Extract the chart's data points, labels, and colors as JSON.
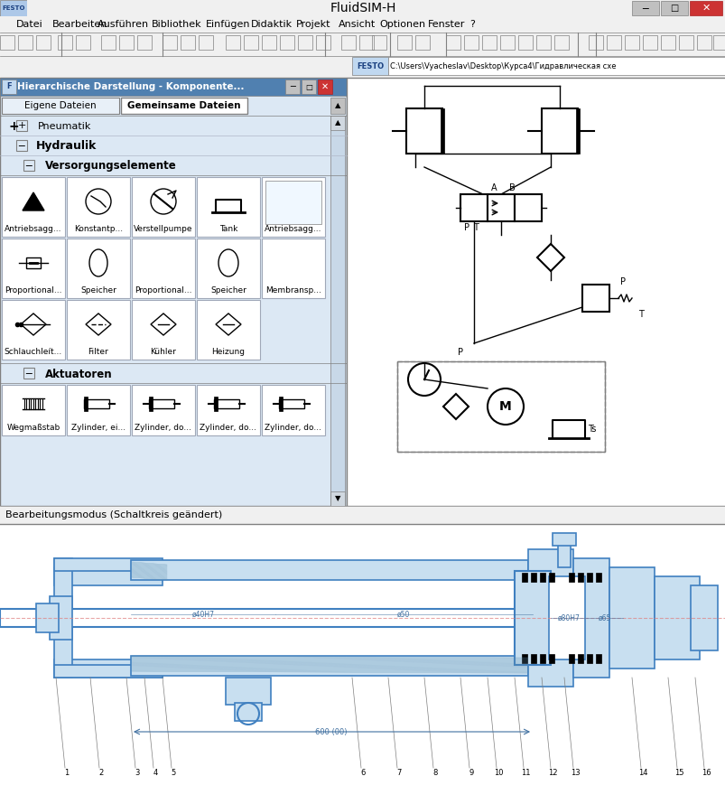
{
  "title": "FluidSIM-H",
  "bg_color": "#f0f0f0",
  "titlebar_bg": "#d4d0c8",
  "white": "#ffffff",
  "black": "#000000",
  "blue_light": "#adc8e8",
  "blue_draw": "#4080c0",
  "red_close": "#cc0000",
  "gray_mid": "#c0c0c0",
  "gray_dark": "#808080",
  "panel_bg": "#dce8f4",
  "header_bg": "#b8cfe8",
  "status_text": "Bearbeitungsmodus (Schaltkreis geändert)",
  "menu_items": [
    "Datei",
    "Bearbeiten",
    "Ausführen",
    "Bibliothek",
    "Einfügen",
    "Didaktik",
    "Projekt",
    "Ansicht",
    "Optionen",
    "Fenster",
    "?"
  ],
  "tab1": "Eigene Dateien",
  "tab2": "Gemeinsame Dateien",
  "pneumatik": "Pneumatik",
  "hydraulik": "Hydraulik",
  "versorgung": "Versorgungselemente",
  "aktuatoren": "Aktuatoren",
  "components_row1": [
    "Antriebsagg...",
    "Konstantp...",
    "Verstellpumpe",
    "Tank",
    "Antriebsagg..."
  ],
  "components_row2": [
    "Proportional...",
    "Speicher",
    "Proportional...",
    "Speicher",
    "Membransp..."
  ],
  "components_row3": [
    "Schlauchleít...",
    "Filter",
    "Kühler",
    "Heizung"
  ],
  "components_row4": [
    "Wegmaßstab",
    "Zylinder, ei...",
    "Zylinder, do...",
    "Zylinder, do...",
    "Zylinder, do..."
  ],
  "window_title": "Hierarchische Darstellung - Komponente...",
  "path_text": "C:\\Users\\Vyacheslav\\Desktop\\Курса4\\Гидравлическая схе",
  "festo_color": "#e8f0f8",
  "circuit_area_bg": "#ffffff",
  "drawing_area_bg": "#ffffff"
}
